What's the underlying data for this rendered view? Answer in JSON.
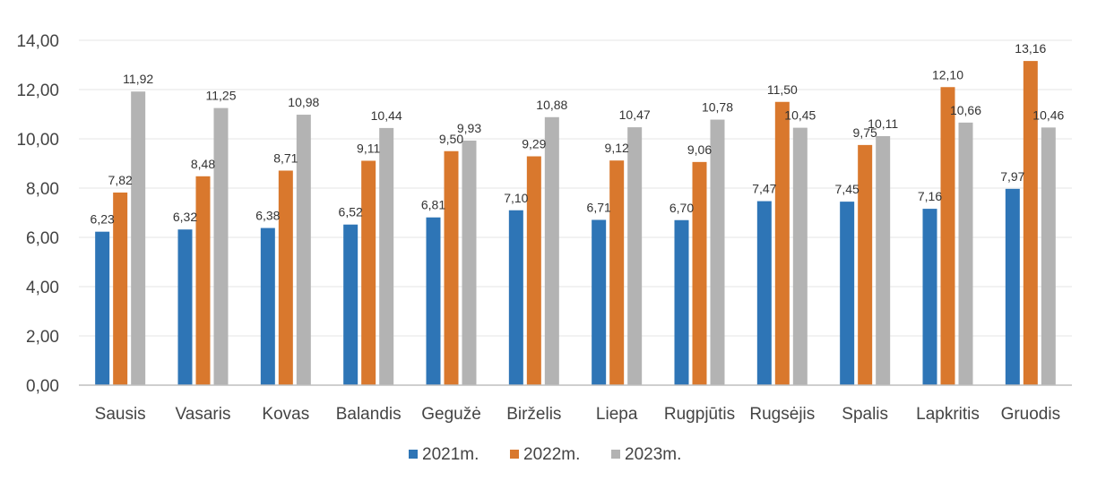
{
  "chart_data": {
    "type": "bar",
    "categories": [
      "Sausis",
      "Vasaris",
      "Kovas",
      "Balandis",
      "Gegužė",
      "Birželis",
      "Liepa",
      "Rugpjūtis",
      "Rugsėjis",
      "Spalis",
      "Lapkritis",
      "Gruodis"
    ],
    "series": [
      {
        "name": "2021m.",
        "color": "#2e75b6",
        "values": [
          6.23,
          6.32,
          6.38,
          6.52,
          6.81,
          7.1,
          6.71,
          6.7,
          7.47,
          7.45,
          7.16,
          7.97
        ],
        "labels": [
          "6,23",
          "6,32",
          "6,38",
          "6,52",
          "6,81",
          "7,10",
          "6,71",
          "6,70",
          "7,47",
          "7,45",
          "7,16",
          "7,97"
        ]
      },
      {
        "name": "2022m.",
        "color": "#d9782d",
        "values": [
          7.82,
          8.48,
          8.71,
          9.11,
          9.5,
          9.29,
          9.12,
          9.06,
          11.5,
          9.75,
          12.1,
          13.16
        ],
        "labels": [
          "7,82",
          "8,48",
          "8,71",
          "9,11",
          "9,50",
          "9,29",
          "9,12",
          "9,06",
          "11,50",
          "9,75",
          "12,10",
          "13,16"
        ]
      },
      {
        "name": "2023m.",
        "color": "#b3b3b3",
        "values": [
          11.92,
          11.25,
          10.98,
          10.44,
          9.93,
          10.88,
          10.47,
          10.78,
          10.45,
          10.11,
          10.66,
          10.46
        ],
        "labels": [
          "11,92",
          "11,25",
          "10,98",
          "10,44",
          "9,93",
          "10,88",
          "10,47",
          "10,78",
          "10,45",
          "10,11",
          "10,66",
          "10,46"
        ]
      }
    ],
    "ylim": [
      0,
      14
    ],
    "yticks": [
      0,
      2,
      4,
      6,
      8,
      10,
      12,
      14
    ],
    "ytick_labels": [
      "0,00",
      "2,00",
      "4,00",
      "6,00",
      "8,00",
      "10,00",
      "12,00",
      "14,00"
    ],
    "grid": true,
    "legend_position": "bottom"
  }
}
